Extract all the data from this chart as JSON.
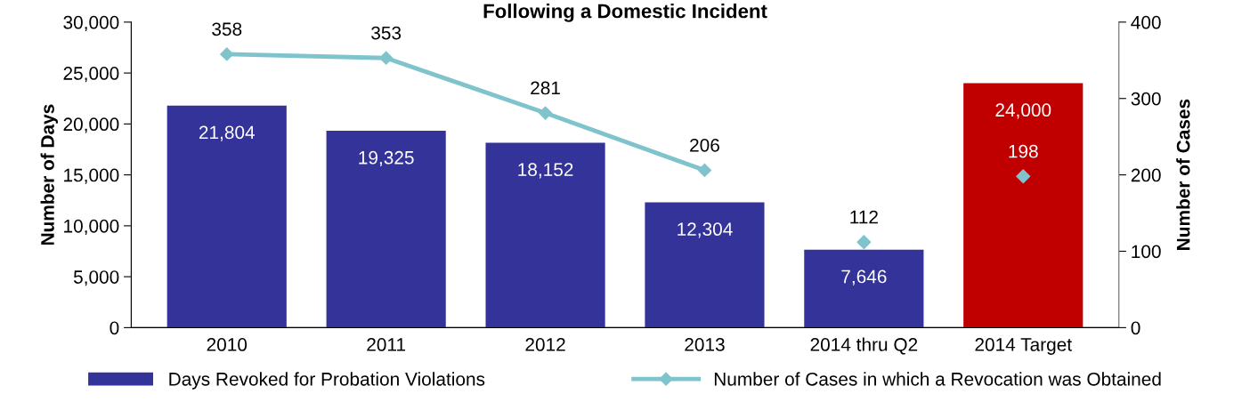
{
  "chart_data": {
    "type": "bar",
    "title": "Following a Domestic Incident",
    "ylabel": "Number of Days",
    "y2label": "Number of Cases",
    "categories": [
      "2010",
      "2011",
      "2012",
      "2013",
      "2014 thru Q2",
      "2014 Target"
    ],
    "ylim": [
      0,
      30000
    ],
    "yticks": [
      0,
      {
        "value": 5000,
        "label": "5,000"
      },
      {
        "value": 10000,
        "label": "10,000"
      },
      {
        "value": 15000,
        "label": "15,000"
      },
      {
        "value": 20000,
        "label": "20,000"
      },
      {
        "value": 25000,
        "label": "25,000"
      },
      {
        "value": 30000,
        "label": "30,000"
      }
    ],
    "y2lim": [
      0,
      400
    ],
    "y2ticks": [
      0,
      100,
      200,
      300,
      400
    ],
    "series": [
      {
        "name": "Days Revoked for Probation Violations",
        "colors": [
          "#333399",
          "#333399",
          "#333399",
          "#333399",
          "#333399",
          "#c00000"
        ],
        "values": [
          21804,
          19325,
          18152,
          12304,
          7646,
          24000
        ],
        "value_labels": [
          "21,804",
          "19,325",
          "18,152",
          "12,304",
          "7,646",
          "24,000"
        ]
      },
      {
        "name": "Number of Cases in which a Revocation was Obtained",
        "type": "line",
        "axis": "y2",
        "color": "#7fc4cc",
        "marker": "diamond",
        "values": [
          358,
          353,
          281,
          206,
          null,
          null
        ]
      },
      {
        "type": "scatter",
        "axis": "y2",
        "color": "#7fc4cc",
        "marker": "diamond",
        "values": [
          null,
          null,
          null,
          null,
          112,
          198
        ]
      }
    ],
    "data_labels": true,
    "legend": "bottom",
    "grid": false
  }
}
